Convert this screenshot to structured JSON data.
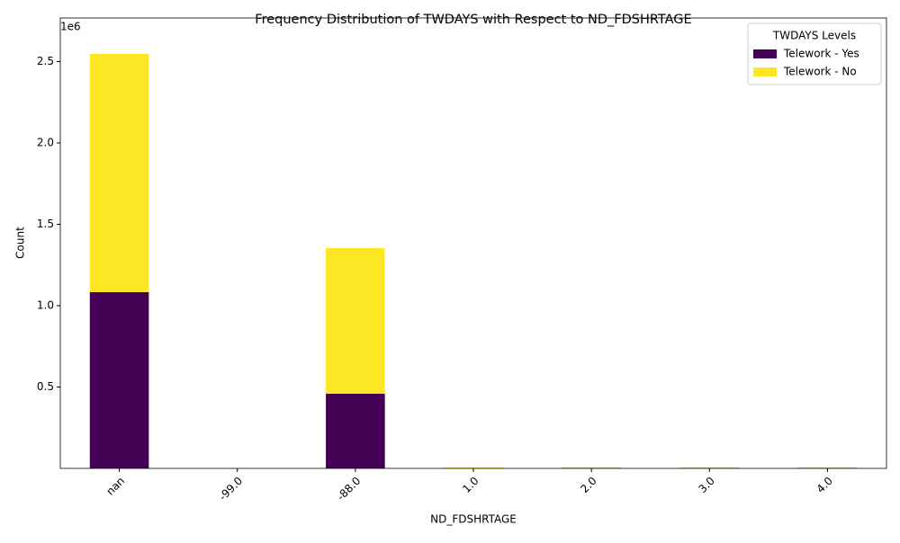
{
  "chart_data": {
    "type": "stacked_bar",
    "title": "Frequency Distribution of TWDAYS with Respect to ND_FDSHRTAGE",
    "x_label": "ND_FDSHRTAGE",
    "y_label": "Count",
    "y_offset_label": "1e6",
    "categories": [
      "nan",
      "-99.0",
      "-88.0",
      "1.0",
      "2.0",
      "3.0",
      "4.0"
    ],
    "series": [
      {
        "name": "Telework - Yes",
        "color": "#440154",
        "values": [
          1.083,
          0,
          0.459,
          0.001,
          0.003,
          0.003,
          0.003
        ]
      },
      {
        "name": "Telework - No",
        "color": "#fde725",
        "values": [
          1.464,
          0,
          0.895,
          0.004,
          0.001,
          0.001,
          0.001
        ]
      }
    ],
    "ylim": [
      0,
      2.768
    ],
    "yticks": [
      0.5,
      {
        "value": 1,
        "label": "1.0"
      },
      1.5,
      {
        "value": 2,
        "label": "2.0"
      },
      2.5
    ],
    "legend_title": "TWDAYS Levels",
    "legend_position": "upper right",
    "grid": false
  }
}
